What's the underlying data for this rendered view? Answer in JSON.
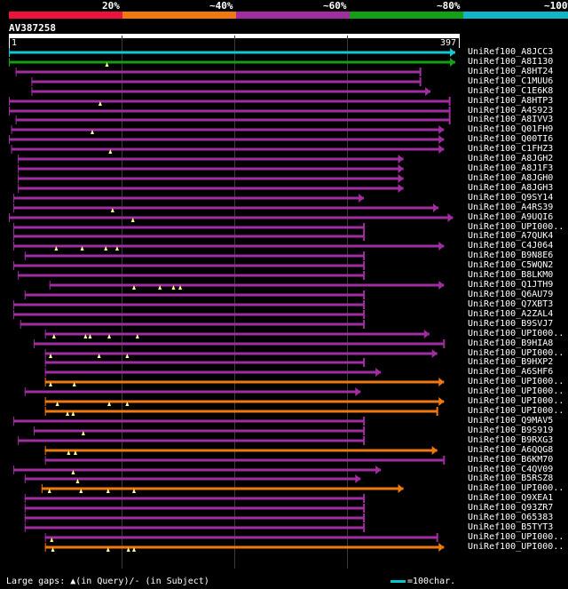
{
  "legend": [
    {
      "label": "20%",
      "color": "#e8143c"
    },
    {
      "label": "~40%",
      "color": "#f07810"
    },
    {
      "label": "~60%",
      "color": "#a02ea0"
    },
    {
      "label": "~80%",
      "color": "#14a014"
    },
    {
      "label": "~100%",
      "color": "#14b4c8"
    }
  ],
  "query": {
    "id": "AV387258",
    "start": "1",
    "end": "397",
    "length": 397
  },
  "colors": {
    "cyan": "#14c8d2",
    "green": "#14a014",
    "purple": "#a02ea0",
    "orange": "#f07810",
    "marker": "#ffff96"
  },
  "chart_data": {
    "type": "alignment",
    "x_range": [
      1,
      397
    ],
    "hits": [
      {
        "label": "UniRef100_A8JCC3",
        "start": 1,
        "end": 397,
        "color": "cyan",
        "head": "arrow",
        "markers": []
      },
      {
        "label": "UniRef100_A8I130",
        "start": 1,
        "end": 397,
        "color": "green",
        "head": "arrow",
        "markers": [
          88
        ]
      },
      {
        "label": "UniRef100_A8HT24",
        "start": 7,
        "end": 366,
        "color": "purple",
        "head": "bar",
        "markers": []
      },
      {
        "label": "UniRef100_C1MUU6",
        "start": 21,
        "end": 366,
        "color": "purple",
        "head": "bar",
        "markers": []
      },
      {
        "label": "UniRef100_C1E6K8",
        "start": 21,
        "end": 375,
        "color": "purple",
        "head": "arrow",
        "markers": []
      },
      {
        "label": "UniRef100_A8HTP3",
        "start": 1,
        "end": 392,
        "color": "purple",
        "head": "bar",
        "markers": [
          82
        ]
      },
      {
        "label": "UniRef100_A4S923",
        "start": 1,
        "end": 392,
        "color": "purple",
        "head": "bar",
        "markers": []
      },
      {
        "label": "UniRef100_A8IVV3",
        "start": 7,
        "end": 392,
        "color": "purple",
        "head": "bar",
        "markers": []
      },
      {
        "label": "UniRef100_Q01FH9",
        "start": 3,
        "end": 387,
        "color": "purple",
        "head": "arrow",
        "markers": [
          75
        ]
      },
      {
        "label": "UniRef100_Q00TI6",
        "start": 1,
        "end": 387,
        "color": "purple",
        "head": "arrow",
        "markers": []
      },
      {
        "label": "UniRef100_C1FHZ3",
        "start": 3,
        "end": 387,
        "color": "purple",
        "head": "arrow",
        "markers": [
          91
        ]
      },
      {
        "label": "UniRef100_A8JGH2",
        "start": 9,
        "end": 351,
        "color": "purple",
        "head": "arrow",
        "markers": []
      },
      {
        "label": "UniRef100_A8J1F3",
        "start": 9,
        "end": 351,
        "color": "purple",
        "head": "arrow",
        "markers": []
      },
      {
        "label": "UniRef100_A8JGH0",
        "start": 9,
        "end": 351,
        "color": "purple",
        "head": "arrow",
        "markers": []
      },
      {
        "label": "UniRef100_A8JGH3",
        "start": 9,
        "end": 351,
        "color": "purple",
        "head": "arrow",
        "markers": []
      },
      {
        "label": "UniRef100_Q9SY14",
        "start": 5,
        "end": 316,
        "color": "purple",
        "head": "arrow",
        "markers": []
      },
      {
        "label": "UniRef100_A4RS39",
        "start": 5,
        "end": 382,
        "color": "purple",
        "head": "arrow",
        "markers": [
          93
        ]
      },
      {
        "label": "UniRef100_A9UQI6",
        "start": 1,
        "end": 395,
        "color": "purple",
        "head": "arrow",
        "markers": [
          111
        ]
      },
      {
        "label": "UniRef100_UPI000..",
        "start": 5,
        "end": 316,
        "color": "purple",
        "head": "bar",
        "markers": []
      },
      {
        "label": "UniRef100_A7QUK4",
        "start": 5,
        "end": 316,
        "color": "purple",
        "head": "bar",
        "markers": []
      },
      {
        "label": "UniRef100_C4J064",
        "start": 5,
        "end": 387,
        "color": "purple",
        "head": "arrow",
        "markers": [
          43,
          66,
          87,
          97
        ]
      },
      {
        "label": "UniRef100_B9N8E6",
        "start": 15,
        "end": 316,
        "color": "purple",
        "head": "bar",
        "markers": []
      },
      {
        "label": "UniRef100_C5WQN2",
        "start": 5,
        "end": 316,
        "color": "purple",
        "head": "bar",
        "markers": []
      },
      {
        "label": "UniRef100_B8LKM0",
        "start": 9,
        "end": 316,
        "color": "purple",
        "head": "bar",
        "markers": []
      },
      {
        "label": "UniRef100_Q1JTH9",
        "start": 37,
        "end": 387,
        "color": "purple",
        "head": "arrow",
        "markers": [
          112,
          135,
          147,
          153
        ]
      },
      {
        "label": "UniRef100_Q6AU79",
        "start": 15,
        "end": 316,
        "color": "purple",
        "head": "bar",
        "markers": []
      },
      {
        "label": "UniRef100_Q7XBT3",
        "start": 5,
        "end": 316,
        "color": "purple",
        "head": "bar",
        "markers": []
      },
      {
        "label": "UniRef100_A2ZAL4",
        "start": 5,
        "end": 316,
        "color": "purple",
        "head": "bar",
        "markers": []
      },
      {
        "label": "UniRef100_B9SVJ7",
        "start": 11,
        "end": 316,
        "color": "purple",
        "head": "bar",
        "markers": []
      },
      {
        "label": "UniRef100_UPI000..",
        "start": 33,
        "end": 374,
        "color": "purple",
        "head": "arrow",
        "markers": [
          41,
          69,
          73,
          90,
          115
        ]
      },
      {
        "label": "UniRef100_B9HIA8",
        "start": 23,
        "end": 387,
        "color": "purple",
        "head": "bar",
        "markers": []
      },
      {
        "label": "UniRef100_UPI000..",
        "start": 33,
        "end": 381,
        "color": "purple",
        "head": "arrow",
        "markers": [
          38,
          81,
          106
        ]
      },
      {
        "label": "UniRef100_B9HXP2",
        "start": 33,
        "end": 316,
        "color": "purple",
        "head": "bar",
        "markers": []
      },
      {
        "label": "UniRef100_A6SHF6",
        "start": 33,
        "end": 331,
        "color": "purple",
        "head": "arrow",
        "markers": []
      },
      {
        "label": "UniRef100_UPI000..",
        "start": 33,
        "end": 387,
        "color": "orange",
        "head": "arrow",
        "markers": [
          38,
          59
        ]
      },
      {
        "label": "UniRef100_UPI000..",
        "start": 15,
        "end": 313,
        "color": "purple",
        "head": "arrow",
        "markers": []
      },
      {
        "label": "UniRef100_UPI000..",
        "start": 33,
        "end": 387,
        "color": "orange",
        "head": "arrow",
        "markers": [
          44,
          90,
          106
        ]
      },
      {
        "label": "UniRef100_UPI000..",
        "start": 33,
        "end": 381,
        "color": "orange",
        "head": "bar",
        "markers": [
          53,
          58
        ]
      },
      {
        "label": "UniRef100_Q9MAV5",
        "start": 5,
        "end": 316,
        "color": "purple",
        "head": "bar",
        "markers": []
      },
      {
        "label": "UniRef100_B9S919",
        "start": 23,
        "end": 316,
        "color": "purple",
        "head": "bar",
        "markers": [
          67
        ]
      },
      {
        "label": "UniRef100_B9RXG3",
        "start": 9,
        "end": 316,
        "color": "purple",
        "head": "bar",
        "markers": []
      },
      {
        "label": "UniRef100_A6QQG8",
        "start": 33,
        "end": 381,
        "color": "orange",
        "head": "arrow",
        "markers": [
          54,
          60
        ]
      },
      {
        "label": "UniRef100_B6KM70",
        "start": 33,
        "end": 387,
        "color": "purple",
        "head": "bar",
        "markers": []
      },
      {
        "label": "UniRef100_C4QV09",
        "start": 5,
        "end": 331,
        "color": "purple",
        "head": "arrow",
        "markers": [
          58
        ]
      },
      {
        "label": "UniRef100_B5RSZ8",
        "start": 15,
        "end": 313,
        "color": "purple",
        "head": "arrow",
        "markers": [
          62
        ]
      },
      {
        "label": "UniRef100_UPI000..",
        "start": 30,
        "end": 351,
        "color": "orange",
        "head": "arrow",
        "markers": [
          37,
          65,
          89,
          112
        ]
      },
      {
        "label": "UniRef100_Q9XEA1",
        "start": 15,
        "end": 316,
        "color": "purple",
        "head": "bar",
        "markers": []
      },
      {
        "label": "UniRef100_Q93ZR7",
        "start": 15,
        "end": 316,
        "color": "purple",
        "head": "bar",
        "markers": []
      },
      {
        "label": "UniRef100_O65383",
        "start": 15,
        "end": 316,
        "color": "purple",
        "head": "bar",
        "markers": []
      },
      {
        "label": "UniRef100_B5TYT3",
        "start": 15,
        "end": 316,
        "color": "purple",
        "head": "bar",
        "markers": []
      },
      {
        "label": "UniRef100_UPI000..",
        "start": 33,
        "end": 381,
        "color": "purple",
        "head": "bar",
        "markers": [
          39
        ]
      },
      {
        "label": "UniRef100_UPI000..",
        "start": 33,
        "end": 387,
        "color": "orange",
        "head": "arrow",
        "markers": [
          40,
          89,
          107,
          112
        ]
      }
    ]
  },
  "footer": {
    "text": "Large gaps: ▲(in Query)/- (in Subject)",
    "scale_label": "=100char."
  }
}
